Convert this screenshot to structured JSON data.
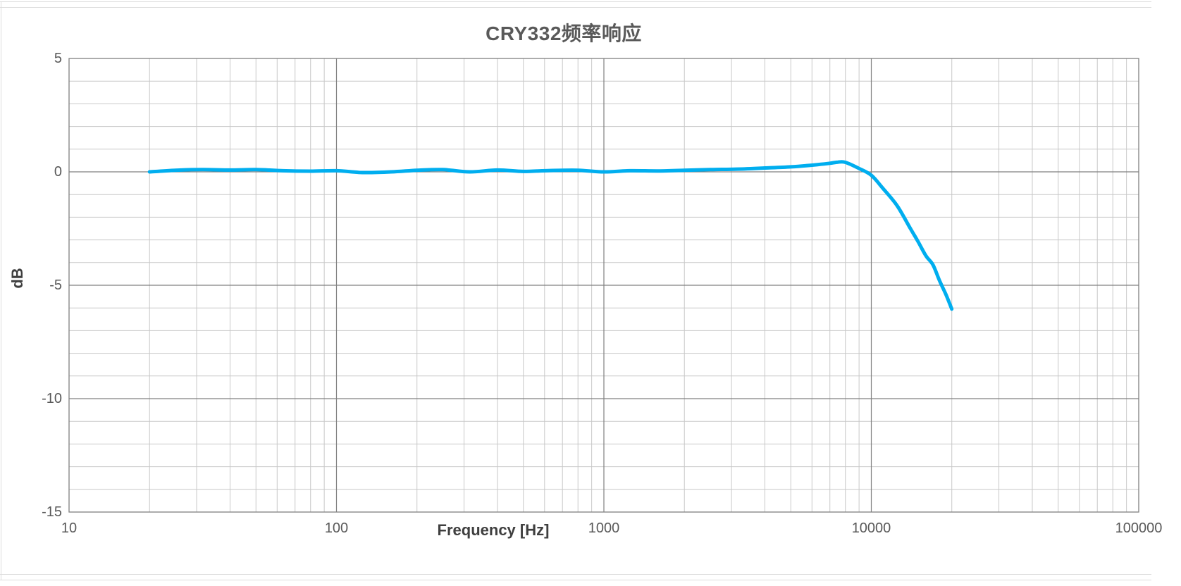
{
  "title": "CRY332频率响应",
  "colors": {
    "curve": "#00AEEF",
    "grid_minor": "#c8c8c8",
    "grid_major": "#808080",
    "plot_border": "#808080",
    "text": "#595959",
    "axis_title_text": "#3f3f3f",
    "frame": "#dcdcdc"
  },
  "chart_data": {
    "type": "line",
    "title": "CRY332频率响应",
    "xlabel": "Frequency [Hz]",
    "ylabel": "dB",
    "x_scale": "log",
    "xlim": [
      10,
      100000
    ],
    "ylim": [
      -15,
      5
    ],
    "x_ticks": [
      10,
      100,
      1000,
      10000,
      100000
    ],
    "x_tick_labels": [
      "10",
      "100",
      "1000",
      "10000",
      "100000"
    ],
    "y_ticks": [
      5,
      0,
      -5,
      -10,
      -15
    ],
    "y_tick_labels": [
      "5",
      "0",
      "-5",
      "-10",
      "-15"
    ],
    "y_minor_step": 1,
    "grid": "both",
    "legend": "none",
    "series": [
      {
        "name": "CRY332",
        "color": "#00AEEF",
        "points": [
          [
            20,
            0.0
          ],
          [
            25,
            0.07
          ],
          [
            31.5,
            0.1
          ],
          [
            40,
            0.08
          ],
          [
            50,
            0.1
          ],
          [
            63,
            0.05
          ],
          [
            80,
            0.03
          ],
          [
            100,
            0.05
          ],
          [
            125,
            -0.03
          ],
          [
            160,
            0.0
          ],
          [
            200,
            0.07
          ],
          [
            250,
            0.1
          ],
          [
            315,
            0.0
          ],
          [
            400,
            0.08
          ],
          [
            500,
            0.02
          ],
          [
            630,
            0.06
          ],
          [
            800,
            0.07
          ],
          [
            1000,
            0.0
          ],
          [
            1250,
            0.05
          ],
          [
            1600,
            0.04
          ],
          [
            2000,
            0.07
          ],
          [
            2500,
            0.1
          ],
          [
            3150,
            0.12
          ],
          [
            4000,
            0.17
          ],
          [
            5000,
            0.22
          ],
          [
            6300,
            0.32
          ],
          [
            7000,
            0.38
          ],
          [
            7500,
            0.43
          ],
          [
            8000,
            0.42
          ],
          [
            9000,
            0.15
          ],
          [
            10000,
            -0.15
          ],
          [
            11000,
            -0.7
          ],
          [
            12500,
            -1.5
          ],
          [
            14000,
            -2.5
          ],
          [
            15000,
            -3.1
          ],
          [
            16000,
            -3.7
          ],
          [
            17000,
            -4.1
          ],
          [
            18000,
            -4.8
          ],
          [
            19000,
            -5.4
          ],
          [
            20000,
            -6.05
          ]
        ]
      }
    ]
  }
}
